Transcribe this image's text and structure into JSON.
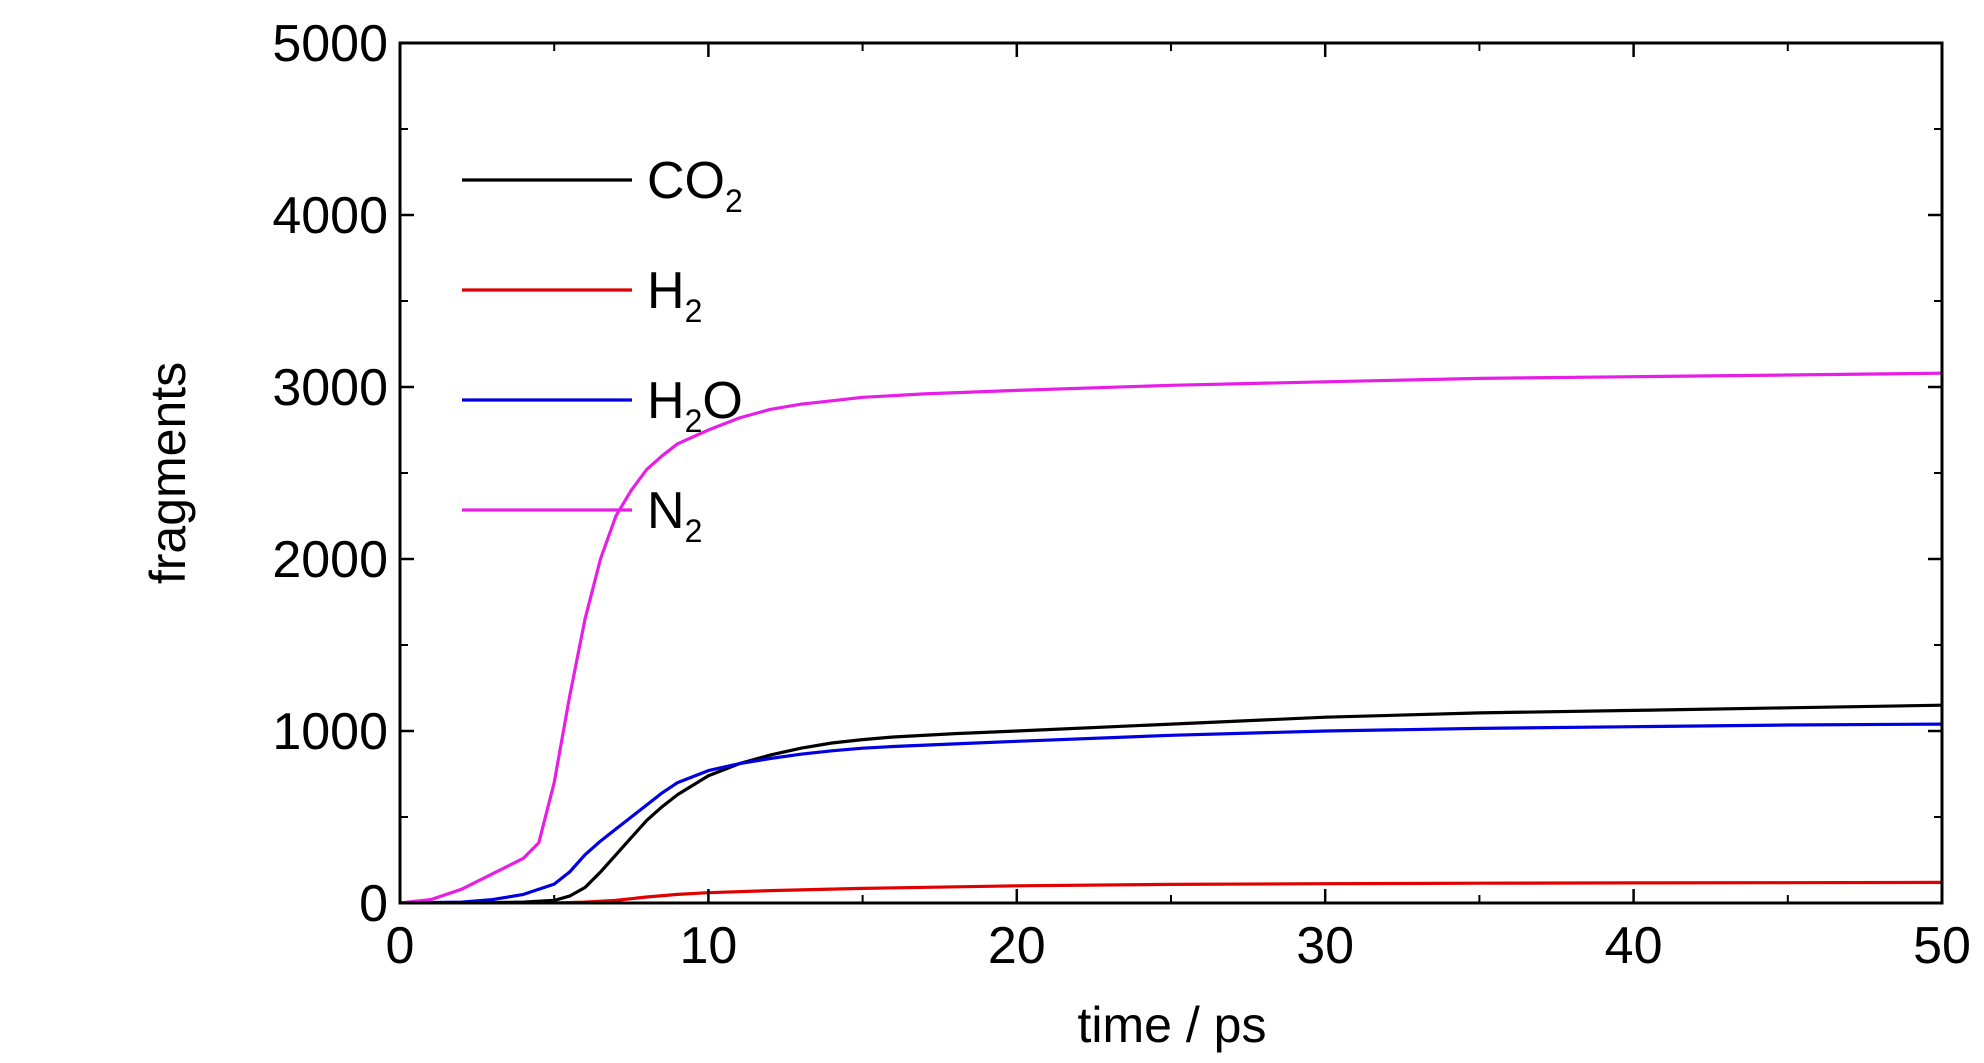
{
  "chart_data": {
    "type": "line",
    "title": "",
    "xlabel": "time / ps",
    "ylabel": "fragments",
    "xlim": [
      0,
      50
    ],
    "ylim": [
      0,
      5000
    ],
    "x_ticks": [
      0,
      10,
      20,
      30,
      40,
      50
    ],
    "y_ticks": [
      0,
      1000,
      2000,
      3000,
      4000,
      5000
    ],
    "x_tick_labels": [
      "0",
      "10",
      "20",
      "30",
      "40",
      "50"
    ],
    "y_tick_labels": [
      "0",
      "1000",
      "2000",
      "3000",
      "4000",
      "5000"
    ],
    "grid": false,
    "legend_placement": "top-left",
    "series": [
      {
        "name": "CO2",
        "label_main": "CO",
        "label_sub": "2",
        "label_tail": "",
        "color": "#000000",
        "x": [
          0,
          2,
          4,
          5,
          5.5,
          6,
          6.5,
          7,
          7.5,
          8,
          8.5,
          9,
          10,
          11,
          12,
          13,
          14,
          15,
          16,
          18,
          20,
          25,
          30,
          35,
          40,
          45,
          50
        ],
        "y": [
          0,
          0,
          5,
          15,
          40,
          90,
          180,
          280,
          380,
          480,
          560,
          630,
          740,
          810,
          860,
          900,
          930,
          950,
          965,
          985,
          1000,
          1040,
          1080,
          1105,
          1120,
          1135,
          1150
        ]
      },
      {
        "name": "H2",
        "label_main": "H",
        "label_sub": "2",
        "label_tail": "",
        "color": "#e00000",
        "x": [
          0,
          5,
          6,
          7,
          8,
          9,
          10,
          12,
          15,
          20,
          25,
          30,
          35,
          40,
          45,
          50
        ],
        "y": [
          0,
          0,
          5,
          15,
          35,
          50,
          60,
          72,
          85,
          100,
          108,
          112,
          115,
          117,
          118,
          120
        ]
      },
      {
        "name": "H2O",
        "label_main": "H",
        "label_sub": "2",
        "label_tail": "O",
        "color": "#0000e0",
        "x": [
          0,
          2,
          3,
          4,
          5,
          5.5,
          6,
          6.5,
          7,
          7.5,
          8,
          8.5,
          9,
          10,
          11,
          12,
          13,
          14,
          15,
          16,
          18,
          20,
          25,
          30,
          35,
          40,
          45,
          50
        ],
        "y": [
          0,
          5,
          20,
          50,
          110,
          180,
          280,
          360,
          430,
          500,
          570,
          640,
          700,
          770,
          810,
          840,
          865,
          885,
          900,
          910,
          925,
          940,
          975,
          1000,
          1015,
          1025,
          1035,
          1040
        ]
      },
      {
        "name": "N2",
        "label_main": "N",
        "label_sub": "2",
        "label_tail": "",
        "color": "#e61ee6",
        "x": [
          0,
          1,
          2,
          3,
          4,
          4.5,
          5,
          5.5,
          6,
          6.5,
          7,
          7.5,
          8,
          8.5,
          9,
          10,
          11,
          12,
          13,
          14,
          15,
          17,
          20,
          25,
          30,
          35,
          40,
          45,
          50
        ],
        "y": [
          0,
          20,
          80,
          170,
          260,
          350,
          700,
          1200,
          1650,
          2000,
          2250,
          2400,
          2520,
          2600,
          2670,
          2750,
          2820,
          2870,
          2900,
          2920,
          2940,
          2960,
          2980,
          3010,
          3030,
          3050,
          3060,
          3070,
          3080
        ]
      }
    ]
  }
}
